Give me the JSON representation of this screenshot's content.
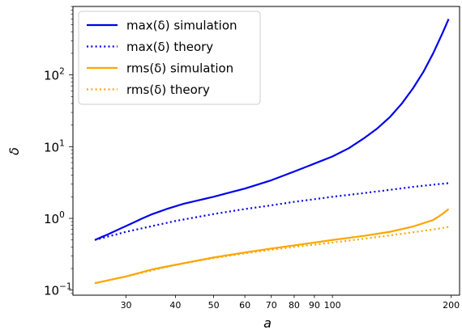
{
  "chart_data": {
    "type": "line",
    "xscale": "log",
    "yscale": "log",
    "xlabel": "a",
    "ylabel": "δ",
    "xlim": [
      22,
      210
    ],
    "ylim": [
      0.085,
      900
    ],
    "x_ticks": [
      {
        "value": 30,
        "label": "30"
      },
      {
        "value": 40,
        "label": "40"
      },
      {
        "value": 50,
        "label": "50"
      },
      {
        "value": 60,
        "label": "60"
      },
      {
        "value": 70,
        "label": "70"
      },
      {
        "value": 80,
        "label": "80"
      },
      {
        "value": 90,
        "label": "90"
      },
      {
        "value": 100,
        "label": "100"
      },
      {
        "value": 200,
        "label": "200"
      }
    ],
    "y_ticks": [
      {
        "value": 0.1,
        "base": "10",
        "exp": "−1"
      },
      {
        "value": 1,
        "base": "10",
        "exp": "0"
      },
      {
        "value": 10,
        "base": "10",
        "exp": "1"
      },
      {
        "value": 100,
        "base": "10",
        "exp": "2"
      }
    ],
    "legend_position": "top-left",
    "series": [
      {
        "name": "max(δ) simulation",
        "color": "#0000ee",
        "style": "solid",
        "x": [
          25,
          27,
          29,
          31,
          33,
          35,
          38,
          42,
          46,
          50,
          55,
          60,
          70,
          80,
          90,
          100,
          110,
          120,
          130,
          140,
          150,
          160,
          170,
          180,
          190,
          197
        ],
        "y": [
          0.5,
          0.6,
          0.72,
          0.85,
          1.0,
          1.15,
          1.35,
          1.6,
          1.8,
          2.0,
          2.3,
          2.6,
          3.4,
          4.5,
          5.8,
          7.3,
          9.5,
          13,
          18,
          26,
          40,
          65,
          110,
          200,
          380,
          600
        ]
      },
      {
        "name": "max(δ) theory",
        "color": "#0000ee",
        "style": "dotted",
        "x": [
          25,
          30,
          40,
          50,
          60,
          70,
          80,
          90,
          100,
          120,
          140,
          160,
          180,
          197
        ],
        "y": [
          0.5,
          0.65,
          0.92,
          1.15,
          1.35,
          1.52,
          1.7,
          1.85,
          2.0,
          2.25,
          2.5,
          2.75,
          2.95,
          3.1
        ]
      },
      {
        "name": "rms(δ) simulation",
        "color": "#ffa500",
        "style": "solid",
        "x": [
          25,
          30,
          35,
          40,
          50,
          60,
          70,
          80,
          90,
          100,
          120,
          140,
          160,
          180,
          190,
          197
        ],
        "y": [
          0.125,
          0.155,
          0.195,
          0.225,
          0.285,
          0.335,
          0.38,
          0.42,
          0.46,
          0.5,
          0.57,
          0.65,
          0.77,
          0.95,
          1.15,
          1.35
        ]
      },
      {
        "name": "rms(δ) theory",
        "color": "#ffa500",
        "style": "dotted",
        "x": [
          25,
          30,
          40,
          50,
          60,
          70,
          80,
          90,
          100,
          120,
          140,
          160,
          180,
          197
        ],
        "y": [
          0.125,
          0.155,
          0.225,
          0.28,
          0.325,
          0.365,
          0.4,
          0.43,
          0.46,
          0.52,
          0.58,
          0.64,
          0.7,
          0.76
        ]
      }
    ]
  }
}
